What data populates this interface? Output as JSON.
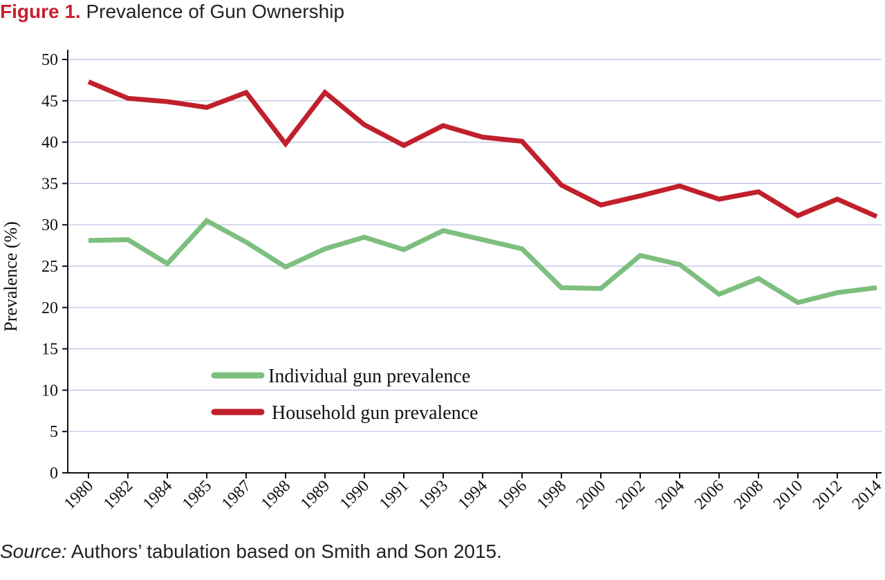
{
  "figure": {
    "label": "Figure 1.",
    "title": "Prevalence of Gun Ownership"
  },
  "source": {
    "label": "Source:",
    "text": "Authors’ tabulation based on Smith and Son 2015."
  },
  "chart_data": {
    "type": "line",
    "title": "Prevalence of Gun Ownership",
    "xlabel": "",
    "ylabel": "Prevalence (%)",
    "ylim": [
      0,
      50
    ],
    "yticks": [
      0,
      5,
      10,
      15,
      20,
      25,
      30,
      35,
      40,
      45,
      50
    ],
    "grid": "horizontal",
    "legend_position": "lower-center",
    "categories": [
      "1980",
      "1982",
      "1984",
      "1985",
      "1987",
      "1988",
      "1989",
      "1990",
      "1991",
      "1993",
      "1994",
      "1996",
      "1998",
      "2000",
      "2002",
      "2004",
      "2006",
      "2008",
      "2010",
      "2012",
      "2014"
    ],
    "series": [
      {
        "name": "Individual gun prevalence",
        "color": "#7dbf7e",
        "values": [
          28.1,
          28.2,
          25.3,
          30.5,
          27.9,
          24.9,
          27.1,
          28.5,
          27.0,
          29.3,
          28.2,
          27.1,
          22.4,
          22.3,
          26.3,
          25.2,
          21.6,
          23.5,
          20.6,
          21.8,
          22.4
        ]
      },
      {
        "name": "Household gun prevalence",
        "color": "#c0202c",
        "values": [
          47.3,
          45.3,
          44.9,
          44.2,
          46.0,
          39.8,
          46.0,
          42.1,
          39.6,
          42.0,
          40.6,
          40.1,
          34.8,
          32.4,
          33.5,
          34.7,
          33.1,
          34.0,
          31.1,
          33.1,
          31.0
        ]
      }
    ]
  },
  "colors": {
    "grid": "#b9bde0",
    "axis": "#111111",
    "accent": "#c8202f"
  }
}
